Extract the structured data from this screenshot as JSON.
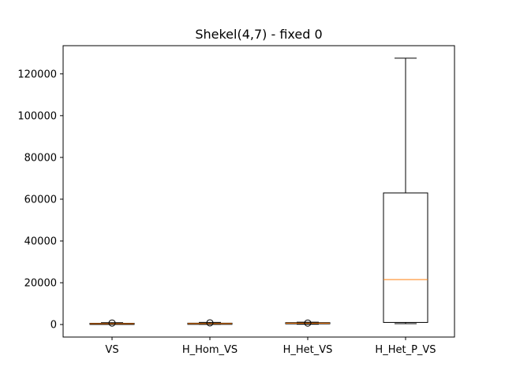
{
  "chart_data": {
    "type": "boxplot",
    "title": "Shekel(4,7) - fixed 0",
    "xlabel": "",
    "ylabel": "",
    "categories": [
      "VS",
      "H_Hom_VS",
      "H_Het_VS",
      "H_Het_P_VS"
    ],
    "ylim": [
      -6000,
      133500
    ],
    "yticks": [
      0,
      20000,
      40000,
      60000,
      80000,
      100000,
      120000
    ],
    "ytick_labels": [
      "0",
      "20000",
      "40000",
      "60000",
      "80000",
      "100000",
      "120000"
    ],
    "grid": false,
    "boxes": [
      {
        "name": "VS",
        "whisker_low": 100,
        "q1": 250,
        "median": 400,
        "q3": 600,
        "whisker_high": 900,
        "outliers": [
          700
        ]
      },
      {
        "name": "H_Hom_VS",
        "whisker_low": 100,
        "q1": 300,
        "median": 450,
        "q3": 650,
        "whisker_high": 1000,
        "outliers": [
          800
        ]
      },
      {
        "name": "H_Het_VS",
        "whisker_low": 150,
        "q1": 400,
        "median": 650,
        "q3": 900,
        "whisker_high": 1100,
        "outliers": [
          700
        ]
      },
      {
        "name": "H_Het_P_VS",
        "whisker_low": 400,
        "q1": 1000,
        "median": 21500,
        "q3": 63000,
        "whisker_high": 127500,
        "outliers": []
      }
    ],
    "colors": {
      "box": "#000000",
      "median": "#ff7f0e",
      "outlier": "#000000"
    }
  }
}
